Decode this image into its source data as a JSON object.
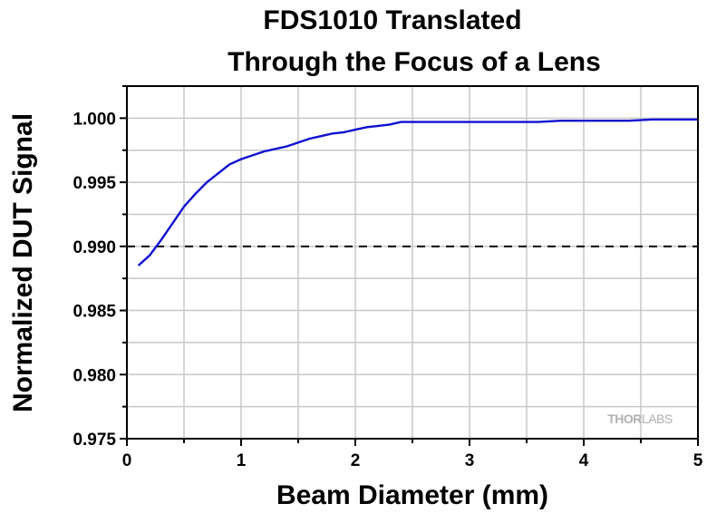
{
  "chart_data": {
    "type": "line",
    "title": [
      "FDS1010 Translated",
      "Through the Focus of a Lens"
    ],
    "xlabel": "Beam Diameter (mm)",
    "ylabel": "Normalized DUT Signal",
    "xlim": [
      0,
      5
    ],
    "ylim": [
      0.975,
      1.0025
    ],
    "xticks": [
      0,
      1,
      2,
      3,
      4,
      5
    ],
    "xtick_labels": [
      "0",
      "1",
      "2",
      "3",
      "4",
      "5"
    ],
    "yticks": [
      0.975,
      0.98,
      0.985,
      0.99,
      0.995,
      1.0
    ],
    "ytick_labels": [
      "0.975",
      "0.980",
      "0.985",
      "0.990",
      "0.995",
      "1.000"
    ],
    "grid": true,
    "series": [
      {
        "color": "#1010d0",
        "x": [
          0.1,
          0.2,
          0.3,
          0.4,
          0.5,
          0.6,
          0.7,
          0.8,
          0.9,
          1.0,
          1.1,
          1.2,
          1.3,
          1.4,
          1.5,
          1.6,
          1.7,
          1.8,
          1.9,
          2.0,
          2.1,
          2.2,
          2.3,
          2.4,
          2.6,
          2.8,
          3.0,
          3.2,
          3.4,
          3.6,
          3.8,
          4.0,
          4.2,
          4.4,
          4.6,
          4.8,
          5.0
        ],
        "y": [
          0.9885,
          0.9893,
          0.9905,
          0.9918,
          0.9931,
          0.9941,
          0.995,
          0.9957,
          0.9964,
          0.9968,
          0.9971,
          0.9974,
          0.9976,
          0.9978,
          0.9981,
          0.9984,
          0.9986,
          0.9988,
          0.9989,
          0.9991,
          0.9993,
          0.9994,
          0.9995,
          0.9997,
          0.9997,
          0.9997,
          0.9997,
          0.9997,
          0.9997,
          0.9997,
          0.9998,
          0.9998,
          0.9998,
          0.9998,
          0.9999,
          0.9999,
          0.9999
        ]
      }
    ],
    "reference_line": {
      "y": 0.99,
      "style": "dashed",
      "color": "#000000"
    }
  },
  "watermark": {
    "brand_left": "THOR",
    "brand_right": "LABS"
  }
}
